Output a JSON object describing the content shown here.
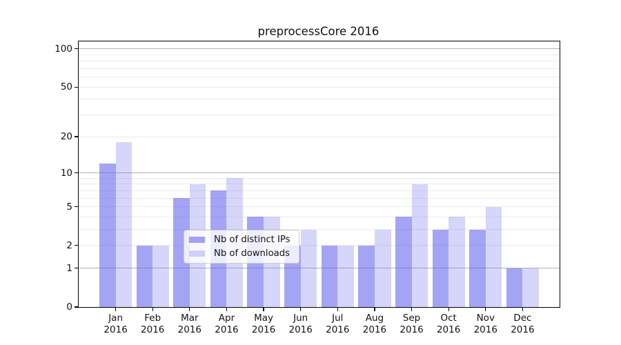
{
  "chart_data": {
    "type": "bar",
    "title": "preprocessCore 2016",
    "categories": [
      {
        "month": "Jan",
        "year": "2016"
      },
      {
        "month": "Feb",
        "year": "2016"
      },
      {
        "month": "Mar",
        "year": "2016"
      },
      {
        "month": "Apr",
        "year": "2016"
      },
      {
        "month": "May",
        "year": "2016"
      },
      {
        "month": "Jun",
        "year": "2016"
      },
      {
        "month": "Jul",
        "year": "2016"
      },
      {
        "month": "Aug",
        "year": "2016"
      },
      {
        "month": "Sep",
        "year": "2016"
      },
      {
        "month": "Oct",
        "year": "2016"
      },
      {
        "month": "Nov",
        "year": "2016"
      },
      {
        "month": "Dec",
        "year": "2016"
      }
    ],
    "series": [
      {
        "name": "Nb of distinct IPs",
        "color": "rgba(92,92,238,0.56)",
        "values": [
          12,
          2,
          6,
          7,
          4,
          2,
          2,
          2,
          4,
          3,
          3,
          1
        ]
      },
      {
        "name": "Nb of downloads",
        "color": "rgba(104,104,238,0.27)",
        "values": [
          18,
          2,
          8,
          9,
          4,
          3,
          2,
          3,
          8,
          4,
          5,
          1
        ]
      }
    ],
    "y_axis": {
      "scale": "log1p",
      "tick_values": [
        0,
        1,
        2,
        5,
        10,
        20,
        50,
        100
      ],
      "tick_labels": [
        "0",
        "1",
        "2",
        "5",
        "10",
        "20",
        "50",
        "100"
      ],
      "major_gridlines": [
        1,
        10,
        100
      ],
      "minor_gridlines": [
        2,
        3,
        4,
        5,
        6,
        7,
        8,
        9,
        20,
        30,
        40,
        50,
        60,
        70,
        80,
        90
      ],
      "ymax": 113
    },
    "grid": "horizontal only",
    "legend_position": "inside lower center",
    "colors": {
      "axis_spine": "#000000",
      "major_grid": "#b2b2b2",
      "minor_grid": "#eaeaea",
      "legend_border": "#cccccc",
      "legend_background": "rgba(255,255,255,0.8)",
      "distinct_ips_bar_on_white": "#a4a4f5",
      "downloads_bar_on_white": "#d6d6fa"
    }
  }
}
